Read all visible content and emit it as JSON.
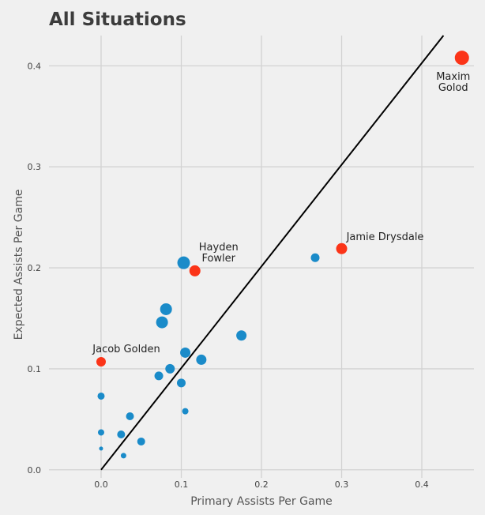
{
  "chart_data": {
    "type": "scatter",
    "title": "All Situations",
    "xlabel": "Primary Assists Per Game",
    "ylabel": "Expected Assists Per Game",
    "xlim": [
      -0.065,
      0.465
    ],
    "ylim": [
      -0.008,
      0.43
    ],
    "x_ticks": [
      "0.0",
      "0.1",
      "0.2",
      "0.3",
      "0.4"
    ],
    "y_ticks": [
      "0.0",
      "0.1",
      "0.2",
      "0.3",
      "0.4"
    ],
    "x_tick_values": [
      0,
      0.1,
      0.2,
      0.3,
      0.4
    ],
    "y_tick_values": [
      0,
      0.1,
      0.2,
      0.3,
      0.4
    ],
    "grid": true,
    "reference_line": {
      "x1": 0.0,
      "y1": 0.0,
      "x2": 0.427,
      "y2": 0.43,
      "color": "#000000"
    },
    "colors": {
      "default": "#1a8bc9",
      "highlight": "#fb3418",
      "background": "#f0f0f0",
      "grid": "#d2d2d2"
    },
    "points": [
      {
        "x": 0.45,
        "y": 0.408,
        "size": 9,
        "color": "#fb3418",
        "label": "Maxim\nGolod",
        "label_pos": "below"
      },
      {
        "x": 0.3,
        "y": 0.219,
        "size": 7,
        "color": "#fb3418",
        "label": "Jamie Drysdale",
        "label_pos": "above-right"
      },
      {
        "x": 0.117,
        "y": 0.197,
        "size": 7,
        "color": "#fb3418",
        "label": "Hayden\nFowler",
        "label_pos": "above-right"
      },
      {
        "x": 0.0,
        "y": 0.107,
        "size": 6,
        "color": "#fb3418",
        "label": "Jacob Golden",
        "label_pos": "above"
      },
      {
        "x": 0.267,
        "y": 0.21,
        "size": 5.5,
        "color": "#1a8bc9"
      },
      {
        "x": 0.103,
        "y": 0.205,
        "size": 8,
        "color": "#1a8bc9"
      },
      {
        "x": 0.081,
        "y": 0.159,
        "size": 7.5,
        "color": "#1a8bc9"
      },
      {
        "x": 0.076,
        "y": 0.146,
        "size": 7.5,
        "color": "#1a8bc9"
      },
      {
        "x": 0.175,
        "y": 0.133,
        "size": 6.5,
        "color": "#1a8bc9"
      },
      {
        "x": 0.105,
        "y": 0.116,
        "size": 6.5,
        "color": "#1a8bc9"
      },
      {
        "x": 0.125,
        "y": 0.109,
        "size": 6.5,
        "color": "#1a8bc9"
      },
      {
        "x": 0.086,
        "y": 0.1,
        "size": 6,
        "color": "#1a8bc9"
      },
      {
        "x": 0.072,
        "y": 0.093,
        "size": 5.5,
        "color": "#1a8bc9"
      },
      {
        "x": 0.1,
        "y": 0.086,
        "size": 5.5,
        "color": "#1a8bc9"
      },
      {
        "x": 0.0,
        "y": 0.073,
        "size": 4.5,
        "color": "#1a8bc9"
      },
      {
        "x": 0.105,
        "y": 0.058,
        "size": 4,
        "color": "#1a8bc9"
      },
      {
        "x": 0.036,
        "y": 0.053,
        "size": 5,
        "color": "#1a8bc9"
      },
      {
        "x": 0.0,
        "y": 0.037,
        "size": 4,
        "color": "#1a8bc9"
      },
      {
        "x": 0.025,
        "y": 0.035,
        "size": 5,
        "color": "#1a8bc9"
      },
      {
        "x": 0.05,
        "y": 0.028,
        "size": 5,
        "color": "#1a8bc9"
      },
      {
        "x": 0.0,
        "y": 0.021,
        "size": 2.5,
        "color": "#1a8bc9"
      },
      {
        "x": 0.028,
        "y": 0.014,
        "size": 3.5,
        "color": "#1a8bc9"
      }
    ]
  }
}
